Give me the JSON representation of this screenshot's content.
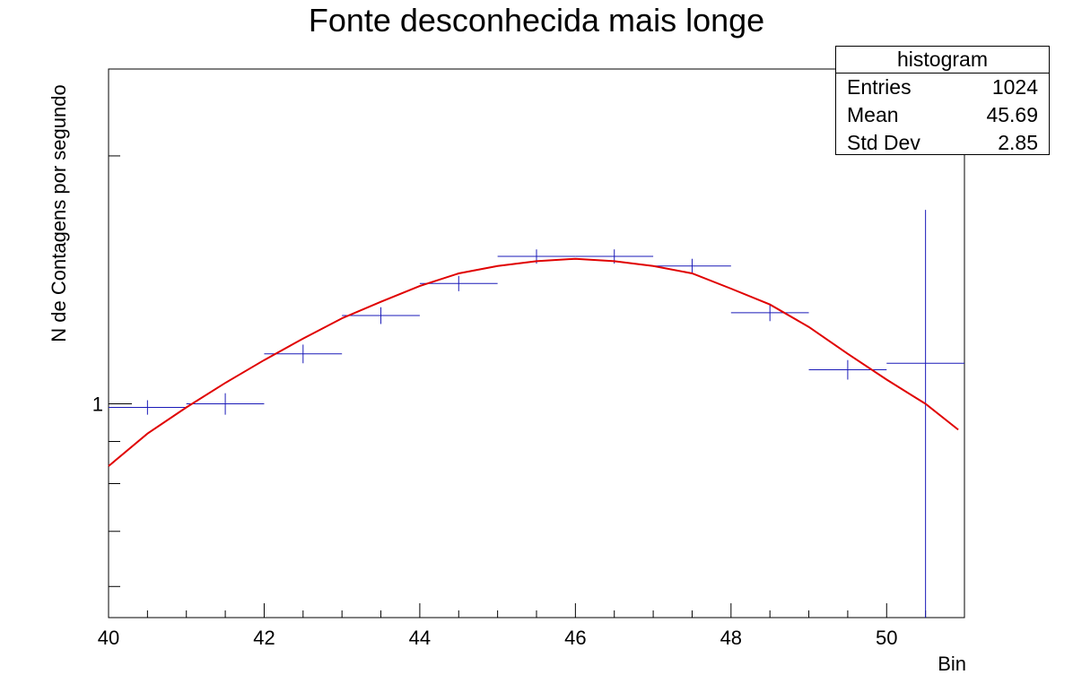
{
  "chart_data": {
    "type": "histogram",
    "title": "Fonte desconhecida mais longe",
    "xlabel": "Bin",
    "ylabel": "N de Contagens por segundo",
    "xlim": [
      40,
      51
    ],
    "ylim": [
      0.55,
      2.55
    ],
    "yscale": "log",
    "x_ticks": [
      40,
      42,
      44,
      46,
      48,
      50
    ],
    "y_tick_labels": [
      {
        "value": 1,
        "label": "1"
      }
    ],
    "grid": false,
    "bins": [
      {
        "lo": 40,
        "hi": 41,
        "value": 0.99,
        "err": 0.02
      },
      {
        "lo": 41,
        "hi": 42,
        "value": 1.0,
        "err": 0.03
      },
      {
        "lo": 42,
        "hi": 43,
        "value": 1.15,
        "err": 0.03
      },
      {
        "lo": 43,
        "hi": 44,
        "value": 1.28,
        "err": 0.03
      },
      {
        "lo": 44,
        "hi": 45,
        "value": 1.4,
        "err": 0.03
      },
      {
        "lo": 45,
        "hi": 46,
        "value": 1.51,
        "err": 0.03
      },
      {
        "lo": 46,
        "hi": 47,
        "value": 1.51,
        "err": 0.03
      },
      {
        "lo": 47,
        "hi": 48,
        "value": 1.47,
        "err": 0.03
      },
      {
        "lo": 48,
        "hi": 49,
        "value": 1.29,
        "err": 0.03
      },
      {
        "lo": 49,
        "hi": 50,
        "value": 1.1,
        "err": 0.03
      },
      {
        "lo": 50,
        "hi": 51,
        "value": 1.12,
        "err": 0.6
      }
    ],
    "fit": {
      "type": "curve",
      "x": [
        40,
        40.5,
        41,
        41.5,
        42,
        42.5,
        43,
        43.5,
        44,
        44.5,
        45,
        45.5,
        46,
        46.5,
        47,
        47.5,
        48,
        48.5,
        49,
        49.5,
        50,
        50.5,
        50.92
      ],
      "y": [
        0.84,
        0.92,
        0.99,
        1.06,
        1.13,
        1.2,
        1.27,
        1.33,
        1.39,
        1.44,
        1.47,
        1.49,
        1.5,
        1.49,
        1.47,
        1.44,
        1.38,
        1.32,
        1.24,
        1.15,
        1.07,
        1.0,
        0.93
      ]
    },
    "colors": {
      "histogram": "#1a1ab8",
      "fit": "#e00000"
    }
  },
  "stats": {
    "title": "histogram",
    "rows": [
      {
        "label": "Entries",
        "value": "1024"
      },
      {
        "label": "Mean",
        "value": "45.69"
      },
      {
        "label": "Std Dev",
        "value": "2.85"
      }
    ]
  }
}
